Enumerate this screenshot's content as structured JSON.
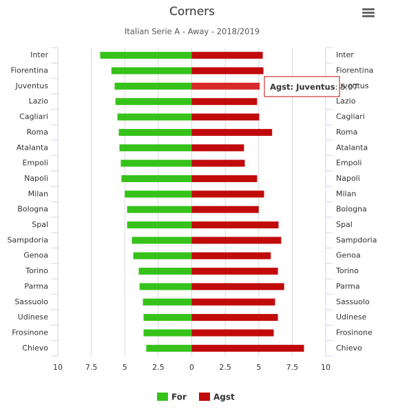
{
  "chart_data": {
    "type": "butterfly",
    "title": "Corners",
    "subtitle": "Italian Serie A - Away - 2018/2019",
    "categories": [
      "Inter",
      "Fiorentina",
      "Juventus",
      "Lazio",
      "Cagliari",
      "Roma",
      "Atalanta",
      "Empoli",
      "Napoli",
      "Milan",
      "Bologna",
      "Spal",
      "Sampdoria",
      "Genoa",
      "Torino",
      "Parma",
      "Sassuolo",
      "Udinese",
      "Frosinone",
      "Chievo"
    ],
    "series": [
      {
        "name": "For",
        "color": "#36c21a",
        "values": [
          -6.84,
          -6.0,
          -5.76,
          -5.7,
          -5.55,
          -5.45,
          -5.4,
          -5.3,
          -5.25,
          -5.0,
          -4.83,
          -4.83,
          -4.47,
          -4.37,
          -3.96,
          -3.9,
          -3.65,
          -3.6,
          -3.6,
          -3.4
        ]
      },
      {
        "name": "Agst",
        "color": "#c10a0a",
        "values": [
          5.3,
          5.35,
          5.07,
          4.88,
          5.04,
          6.0,
          3.9,
          3.96,
          4.88,
          5.4,
          5.0,
          6.48,
          6.68,
          5.9,
          6.43,
          6.9,
          6.22,
          6.43,
          6.12,
          8.38
        ]
      }
    ],
    "ylim": [
      -10,
      10
    ],
    "yticks": [
      {
        "value": -10,
        "label": "10"
      },
      {
        "value": -7.5,
        "label": "7.5"
      },
      {
        "value": -5,
        "label": "5"
      },
      {
        "value": -2.5,
        "label": "2.5"
      },
      0,
      2.5,
      5,
      7.5,
      10
    ],
    "grid": true,
    "highlight": {
      "series": 1,
      "index": 2,
      "color": "#d92a2a"
    }
  }
}
